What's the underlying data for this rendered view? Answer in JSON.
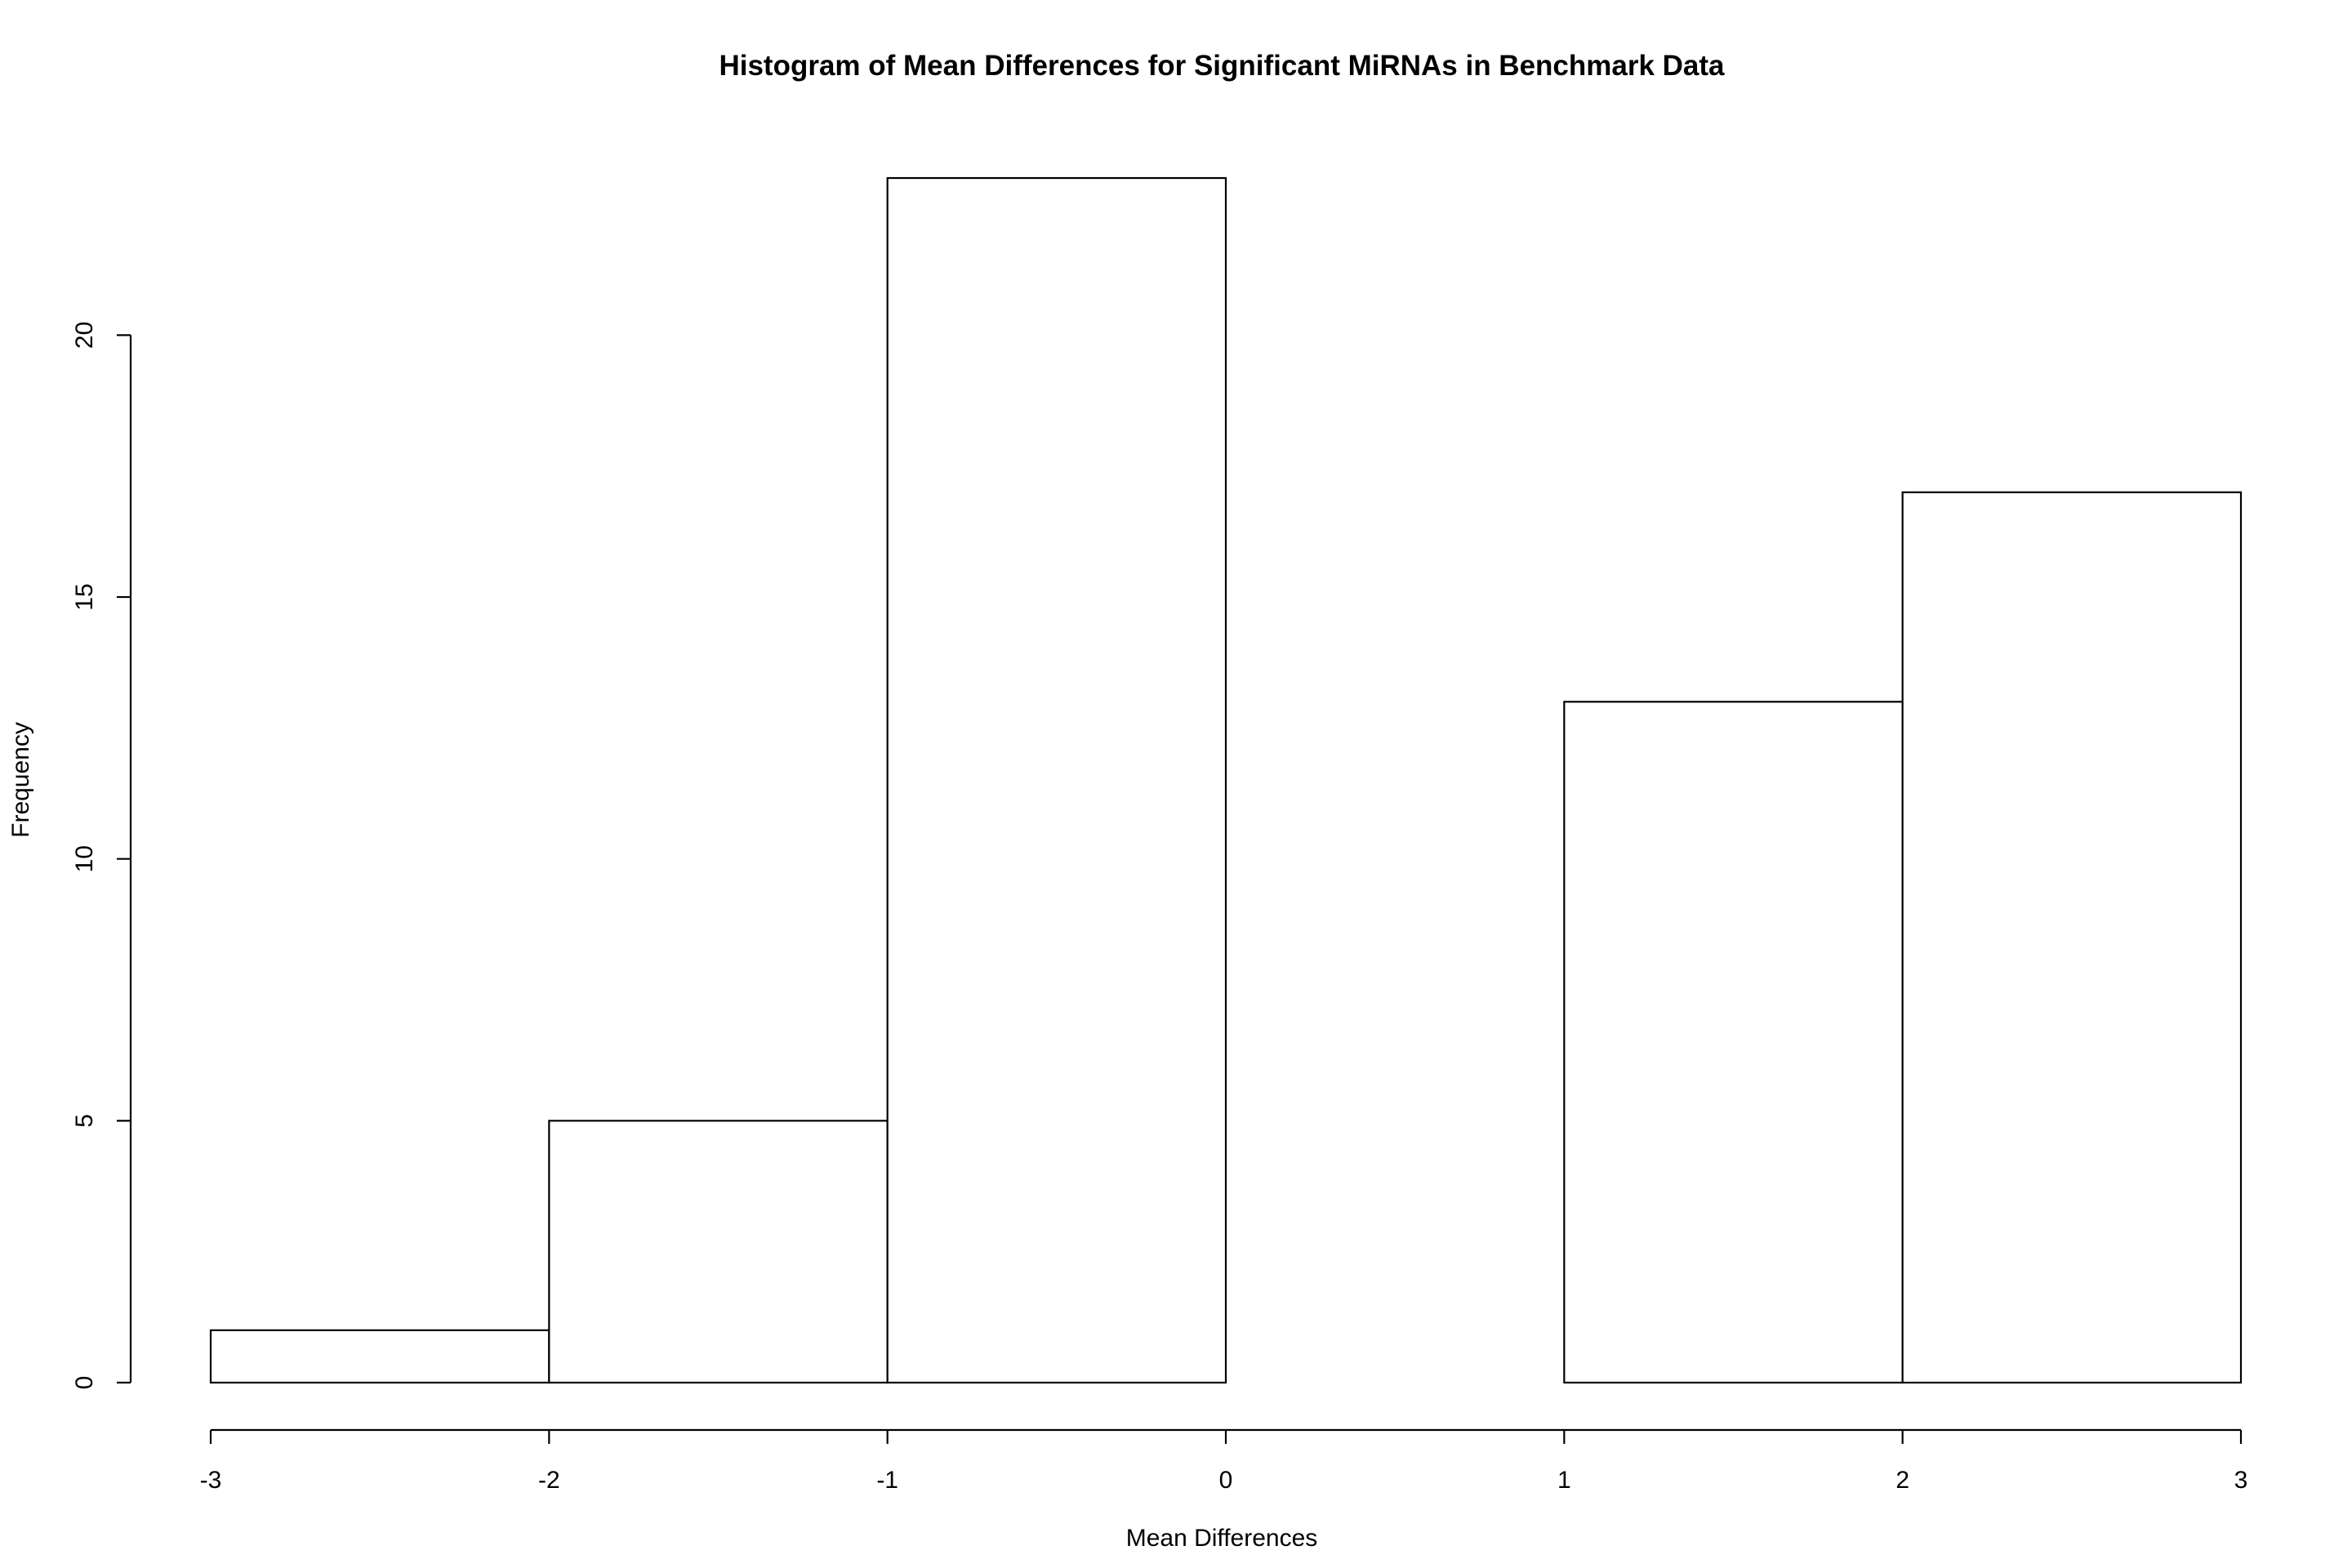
{
  "chart_data": {
    "type": "bar",
    "title": "Histogram of Mean Differences for Significant MiRNAs in Benchmark Data",
    "xlabel": "Mean Differences",
    "ylabel": "Frequency",
    "bins": [
      {
        "start": -3,
        "end": -2,
        "count": 1
      },
      {
        "start": -2,
        "end": -1,
        "count": 5
      },
      {
        "start": -1,
        "end": 0,
        "count": 23
      },
      {
        "start": 0,
        "end": 1,
        "count": 0
      },
      {
        "start": 1,
        "end": 2,
        "count": 13
      },
      {
        "start": 2,
        "end": 3,
        "count": 17
      }
    ],
    "xlim": [
      -3,
      3
    ],
    "ylim": [
      0,
      23
    ],
    "x_ticks": [
      -3,
      -2,
      -1,
      0,
      1,
      2,
      3
    ],
    "x_tick_labels": [
      "-3",
      "-2",
      "-1",
      "0",
      "1",
      "2",
      "3"
    ],
    "y_ticks": [
      0,
      5,
      10,
      15,
      20
    ],
    "y_tick_labels": [
      "0",
      "5",
      "10",
      "15",
      "20"
    ],
    "bar_fill": "#ffffff",
    "bar_stroke": "#000000",
    "grid": false,
    "legend": "none"
  }
}
